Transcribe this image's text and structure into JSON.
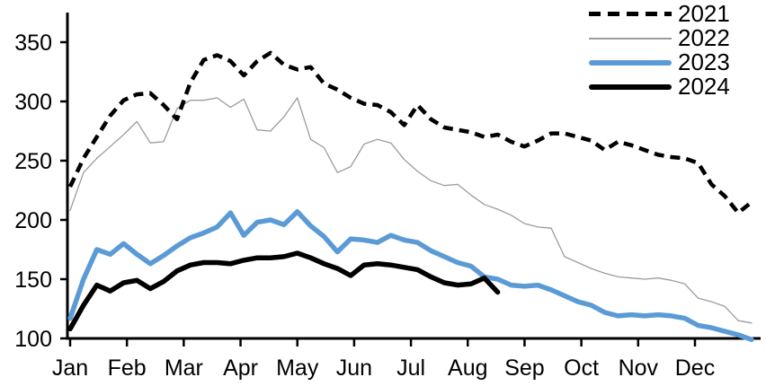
{
  "chart_data": {
    "type": "line",
    "title": "",
    "xlabel": "",
    "ylabel": "",
    "x_unit": "week-of-year",
    "grid": false,
    "legend_position": "top-right",
    "x_axis": {
      "tick_labels": [
        "Jan",
        "Feb",
        "Mar",
        "Apr",
        "May",
        "Jun",
        "Jul",
        "Aug",
        "Sep",
        "Oct",
        "Nov",
        "Dec"
      ]
    },
    "y_axis": {
      "tick_labels": [
        100,
        150,
        200,
        250,
        300,
        350
      ],
      "range": [
        100,
        375
      ]
    },
    "axis_color": "#000000",
    "series": [
      {
        "name": "2021",
        "color": "#000000",
        "style": "dashed",
        "width": 4.5,
        "values": [
          228,
          252,
          270,
          288,
          301,
          306,
          307,
          297,
          285,
          316,
          335,
          339,
          334,
          322,
          334,
          341,
          331,
          327,
          329,
          315,
          310,
          303,
          298,
          297,
          291,
          280,
          297,
          285,
          278,
          276,
          274,
          270,
          272,
          266,
          262,
          267,
          273,
          273,
          270,
          267,
          259,
          266,
          263,
          259,
          255,
          253,
          252,
          248,
          230,
          220,
          206,
          215
        ]
      },
      {
        "name": "2022",
        "color": "#9c9c9c",
        "style": "solid",
        "width": 1.3,
        "values": [
          208,
          240,
          252,
          262,
          272,
          283,
          265,
          266,
          294,
          301,
          301,
          303,
          295,
          302,
          276,
          275,
          287,
          303,
          268,
          261,
          240,
          245,
          264,
          268,
          265,
          251,
          241,
          233,
          229,
          230,
          221,
          213,
          209,
          204,
          197,
          194,
          193,
          169,
          164,
          159,
          155,
          152,
          151,
          150,
          151,
          149,
          146,
          134,
          131,
          127,
          115,
          113
        ]
      },
      {
        "name": "2023",
        "color": "#5b9bd5",
        "style": "solid",
        "width": 5.5,
        "values": [
          117,
          150,
          175,
          171,
          180,
          171,
          163,
          170,
          178,
          185,
          189,
          194,
          206,
          187,
          198,
          200,
          196,
          207,
          195,
          186,
          173,
          184,
          183,
          181,
          187,
          183,
          181,
          174,
          169,
          164,
          161,
          152,
          150,
          145,
          144,
          145,
          141,
          136,
          131,
          128,
          122,
          119,
          120,
          119,
          120,
          119,
          117,
          111,
          109,
          106,
          103,
          99
        ]
      },
      {
        "name": "2024",
        "color": "#000000",
        "style": "solid",
        "width": 5.5,
        "values": [
          108,
          128,
          145,
          140,
          147,
          149,
          142,
          148,
          157,
          162,
          164,
          164,
          163,
          166,
          168,
          168,
          169,
          172,
          168,
          163,
          159,
          153,
          162,
          163,
          162,
          160,
          158,
          152,
          147,
          145,
          146,
          151,
          139
        ]
      }
    ]
  }
}
